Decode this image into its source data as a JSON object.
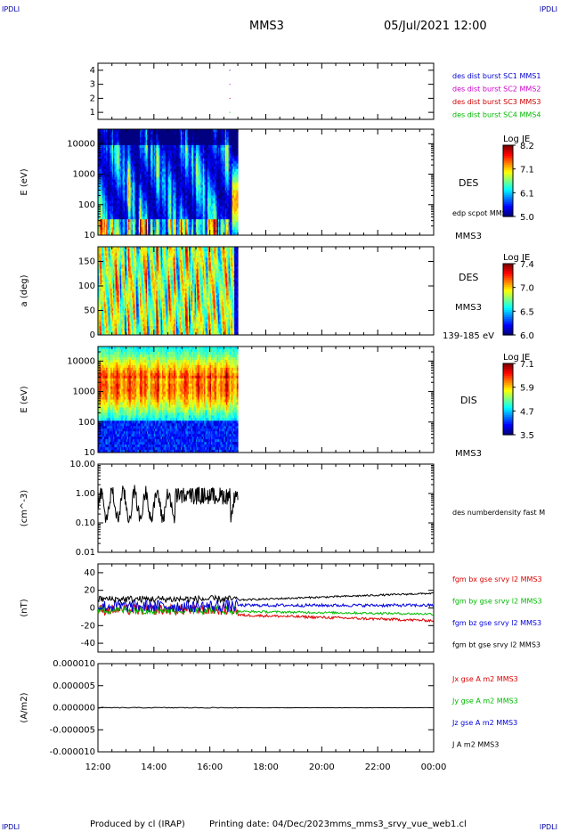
{
  "header": {
    "corner_label": "IPDLI",
    "spacecraft": "MMS3",
    "datetime": "05/Jul/2021 12:00"
  },
  "footer": {
    "produced_by": "Produced by cl (IRAP)",
    "printing_date": "Printing date: 04/Dec/2023",
    "plot_name": "mms_mms3_srvy_vue_web1.cl"
  },
  "time_axis": {
    "ticks": [
      "12:00",
      "14:00",
      "16:00",
      "18:00",
      "20:00",
      "22:00",
      "00:00"
    ],
    "start_hour": 12,
    "end_hour": 24,
    "data_end_hour": 17.0
  },
  "chart_data": [
    {
      "type": "scatter",
      "panel": "burst",
      "yticks": [
        "1",
        "2",
        "3",
        "4"
      ],
      "ylim": [
        0.5,
        4.5
      ],
      "legend": [
        {
          "text": "des dist burst SC1 MMS1",
          "color": "#0000cc"
        },
        {
          "text": "des dist burst SC2 MMS2",
          "color": "#cc00cc"
        },
        {
          "text": "des dist burst SC3 MMS3",
          "color": "#cc0000"
        },
        {
          "text": "des dist burst SC4 MMS4",
          "color": "#00bb00"
        }
      ],
      "points": [
        {
          "x_hour": 16.7,
          "y": 4
        },
        {
          "x_hour": 16.7,
          "y": 3
        },
        {
          "x_hour": 16.7,
          "y": 2
        },
        {
          "x_hour": 16.7,
          "y": 1
        }
      ]
    },
    {
      "type": "heatmap",
      "panel": "des-energy",
      "ylabel": "E (eV)",
      "yscale": "log",
      "ylim": [
        10,
        30000
      ],
      "yticks": [
        "10",
        "100",
        "1000",
        "10000"
      ],
      "label_right": "DES",
      "label_sub": "edp scpot MMS3",
      "label_bottom": "MMS3",
      "colorbar": {
        "title": "Log JE",
        "ticks": [
          "8.2",
          "7.1",
          "6.1",
          "5.0"
        ],
        "min": 5.0,
        "max": 8.2
      }
    },
    {
      "type": "heatmap",
      "panel": "des-pitch",
      "ylabel": "a (deg)",
      "ylim": [
        0,
        180
      ],
      "yticks": [
        "0",
        "50",
        "100",
        "150"
      ],
      "label_right": "DES",
      "label_sub": "MMS3",
      "label_bottom": "139-185 eV",
      "colorbar": {
        "title": "Log JE",
        "ticks": [
          "7.4",
          "7.0",
          "6.5",
          "6.0"
        ],
        "min": 6.0,
        "max": 7.4
      }
    },
    {
      "type": "heatmap",
      "panel": "dis-energy",
      "ylabel": "E (eV)",
      "yscale": "log",
      "ylim": [
        10,
        30000
      ],
      "yticks": [
        "10",
        "100",
        "1000",
        "10000"
      ],
      "label_right": "DIS",
      "label_bottom": "MMS3",
      "colorbar": {
        "title": "Log JE",
        "ticks": [
          "7.1",
          "5.9",
          "4.7",
          "3.5"
        ],
        "min": 3.5,
        "max": 7.1
      }
    },
    {
      "type": "line",
      "panel": "density",
      "ylabel": "(cm^-3)",
      "yscale": "log",
      "ylim": [
        0.01,
        10.0
      ],
      "yticks": [
        "0.01",
        "0.10",
        "1.00",
        "10.00"
      ],
      "legend": [
        {
          "text": "des numberdensity fast M",
          "color": "#000000"
        }
      ]
    },
    {
      "type": "line",
      "panel": "fgm",
      "ylabel": "(nT)",
      "ylim": [
        -50,
        50
      ],
      "yticks": [
        "-40",
        "-20",
        "0",
        "20",
        "40"
      ],
      "legend": [
        {
          "text": "fgm bx gse srvy l2 MMS3",
          "color": "#dd0000"
        },
        {
          "text": "fgm by gse srvy l2 MMS3",
          "color": "#00bb00"
        },
        {
          "text": "fgm bz gse srvy l2 MMS3",
          "color": "#0000dd"
        },
        {
          "text": "fgm bt gse srvy l2 MMS3",
          "color": "#000000"
        }
      ]
    },
    {
      "type": "line",
      "panel": "current",
      "ylabel": "(A/m2)",
      "ylim": [
        -1e-05,
        1e-05
      ],
      "yticks": [
        "-0.000010",
        "-0.000005",
        "0.000000",
        "0.000005",
        "0.000010"
      ],
      "legend": [
        {
          "text": "Jx gse A m2 MMS3",
          "color": "#dd0000"
        },
        {
          "text": "Jy gse A m2 MMS3",
          "color": "#00bb00"
        },
        {
          "text": "Jz gse A m2 MMS3",
          "color": "#0000dd"
        },
        {
          "text": "J A m2 MMS3",
          "color": "#000000"
        }
      ]
    }
  ]
}
